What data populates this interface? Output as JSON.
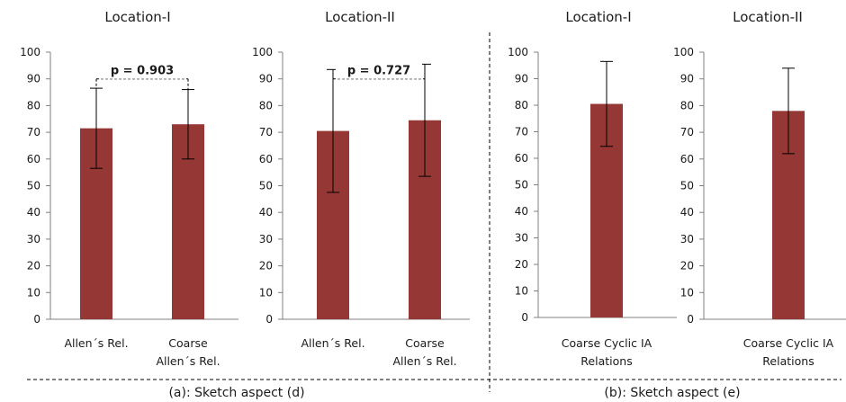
{
  "colors": {
    "bar": "#953735",
    "axis": "#808080",
    "text": "#1a1a1a"
  },
  "captions": [
    "(a): Sketch aspect (d)",
    "(b): Sketch aspect (e)"
  ],
  "chart_data": [
    {
      "type": "bar",
      "title": "Location-I",
      "categories": [
        [
          "Allen´s Rel."
        ],
        [
          "Coarse",
          "Allen´s Rel."
        ]
      ],
      "values": [
        71.5,
        73
      ],
      "error": [
        15,
        13
      ],
      "ylim": [
        0,
        100
      ],
      "yticks": [
        0,
        10,
        20,
        30,
        40,
        50,
        60,
        70,
        80,
        90,
        100
      ],
      "grid": false,
      "annotation": {
        "text": "p = 0.903",
        "bracket_y": 90
      }
    },
    {
      "type": "bar",
      "title": "Location-II",
      "categories": [
        [
          "Allen´s Rel."
        ],
        [
          "Coarse",
          "Allen´s Rel."
        ]
      ],
      "values": [
        70.5,
        74.5
      ],
      "error": [
        23,
        21
      ],
      "ylim": [
        0,
        100
      ],
      "yticks": [
        0,
        10,
        20,
        30,
        40,
        50,
        60,
        70,
        80,
        90,
        100
      ],
      "grid": false,
      "annotation": {
        "text": "p = 0.727",
        "bracket_y": 90
      }
    },
    {
      "type": "bar",
      "title": "Location-I",
      "categories": [
        [
          "Coarse Cyclic IA",
          "Relations"
        ]
      ],
      "values": [
        80.5
      ],
      "error": [
        16
      ],
      "ylim": [
        0,
        100
      ],
      "yticks": [
        0,
        10,
        20,
        30,
        40,
        50,
        60,
        70,
        80,
        90,
        100
      ],
      "grid": false
    },
    {
      "type": "bar",
      "title": "Location-II",
      "categories": [
        [
          "Coarse Cyclic IA",
          "Relations"
        ]
      ],
      "values": [
        78
      ],
      "error": [
        16
      ],
      "ylim": [
        0,
        100
      ],
      "yticks": [
        0,
        10,
        20,
        30,
        40,
        50,
        60,
        70,
        80,
        90,
        100
      ],
      "grid": false
    }
  ]
}
